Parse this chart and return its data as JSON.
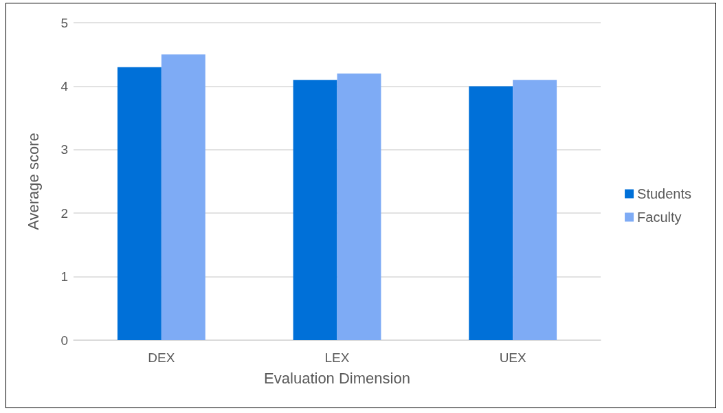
{
  "chart_data": {
    "type": "bar",
    "xlabel": "Evaluation Dimension",
    "ylabel": "Average score",
    "categories": [
      "DEX",
      "LEX",
      "UEX"
    ],
    "series": [
      {
        "name": "Students",
        "color": "#0070d8",
        "values": [
          4.3,
          4.1,
          4.0
        ]
      },
      {
        "name": "Faculty",
        "color": "#7eabf5",
        "values": [
          4.5,
          4.2,
          4.1
        ]
      }
    ],
    "ylim": [
      0,
      5
    ],
    "yticks": [
      0,
      1,
      2,
      3,
      4,
      5
    ],
    "grid": "y",
    "legend": "right"
  }
}
